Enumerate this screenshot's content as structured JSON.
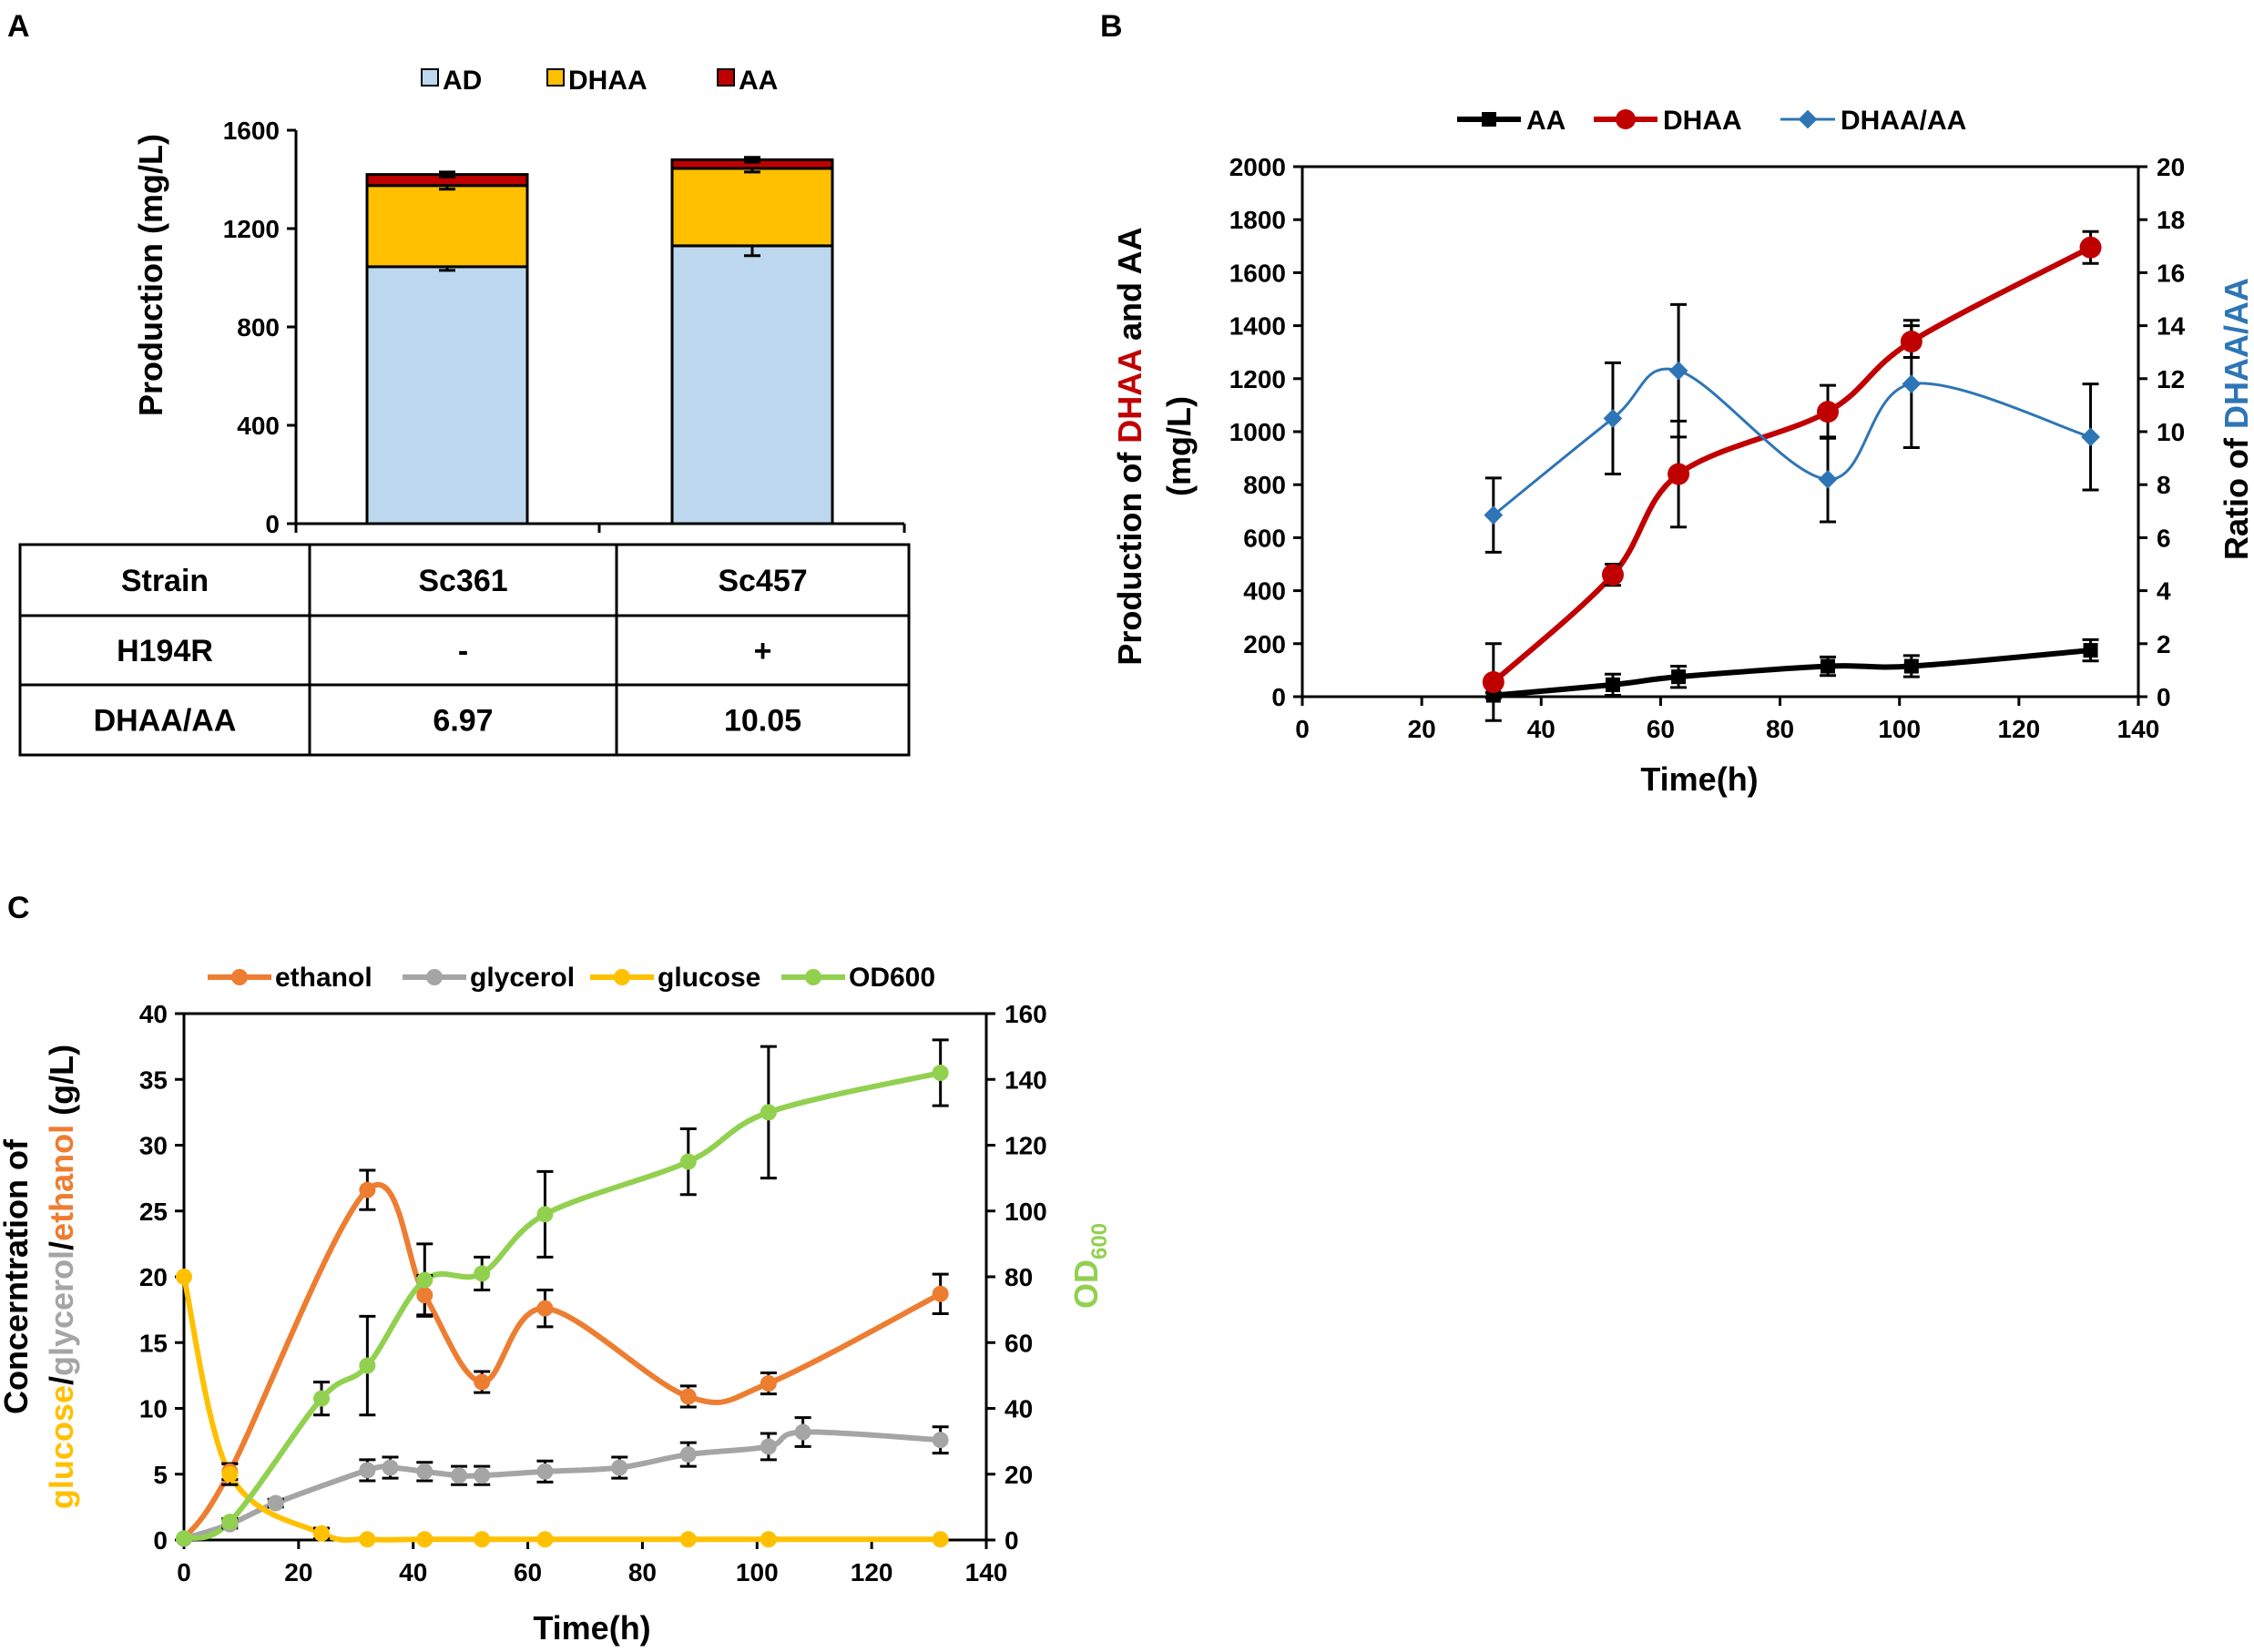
{
  "figure": {
    "panels": [
      "A",
      "B",
      "C"
    ]
  },
  "chart_data": [
    {
      "panel": "A",
      "type": "bar",
      "stacked": true,
      "categories": [
        "Sc361",
        "Sc457"
      ],
      "series": [
        {
          "name": "AD",
          "color": "#bdd7ee",
          "values": [
            1045,
            1130
          ],
          "errors": [
            15,
            40
          ]
        },
        {
          "name": "DHAA",
          "color": "#ffc000",
          "values": [
            330,
            315
          ],
          "errors": [
            15,
            15
          ]
        },
        {
          "name": "AA",
          "color": "#c00000",
          "values": [
            45,
            35
          ],
          "errors": [
            10,
            10
          ]
        }
      ],
      "ylabel": "Production (mg/L)",
      "ylim": [
        0,
        1600
      ],
      "yticks": [
        0,
        400,
        800,
        1200,
        1600
      ],
      "legend": "top",
      "table": {
        "rows": [
          {
            "header": "Strain",
            "values": [
              "Sc361",
              "Sc457"
            ]
          },
          {
            "header": "H194R",
            "values": [
              "-",
              "+"
            ]
          },
          {
            "header": "DHAA/AA",
            "values": [
              "6.97",
              "10.05"
            ]
          }
        ]
      }
    },
    {
      "panel": "B",
      "type": "line",
      "xlabel": "Time(h)",
      "xlim": [
        0,
        140
      ],
      "xticks": [
        0,
        20,
        40,
        60,
        80,
        100,
        120,
        140
      ],
      "ylabel_left": {
        "parts": [
          {
            "text": "Production of ",
            "color": "#000000"
          },
          {
            "text": "DHAA",
            "color": "#c00000"
          },
          {
            "text": " and AA",
            "color": "#000000"
          }
        ],
        "line2": "(mg/L)"
      },
      "ylim_left": [
        0,
        2000
      ],
      "yticks_left": [
        0,
        200,
        400,
        600,
        800,
        1000,
        1200,
        1400,
        1600,
        1800,
        2000
      ],
      "ylabel_right": {
        "parts": [
          {
            "text": "Ratio of ",
            "color": "#000000"
          },
          {
            "text": "DHAA/AA",
            "color": "#2e75b6"
          }
        ]
      },
      "ylim_right": [
        0,
        20
      ],
      "yticks_right": [
        0,
        2,
        4,
        6,
        8,
        10,
        12,
        14,
        16,
        18,
        20
      ],
      "legend": "top",
      "series": [
        {
          "name": "AA",
          "axis": "left",
          "color": "#000000",
          "marker": "square",
          "x": [
            32,
            52,
            63,
            88,
            102,
            132
          ],
          "y": [
            5,
            45,
            75,
            115,
            115,
            175
          ],
          "errors": [
            10,
            40,
            40,
            35,
            40,
            40
          ]
        },
        {
          "name": "DHAA",
          "axis": "left",
          "color": "#c00000",
          "marker": "circle",
          "x": [
            32,
            52,
            63,
            88,
            102,
            132
          ],
          "y": [
            55,
            460,
            840,
            1075,
            1340,
            1695
          ],
          "errors": [
            145,
            40,
            200,
            100,
            60,
            60
          ]
        },
        {
          "name": "DHAA/AA",
          "axis": "right",
          "color": "#2e75b6",
          "marker": "diamond",
          "x": [
            32,
            52,
            63,
            88,
            102,
            132
          ],
          "y": [
            6.85,
            10.5,
            12.3,
            8.2,
            11.8,
            9.8
          ],
          "errors": [
            1.4,
            2.1,
            2.5,
            1.6,
            2.4,
            2.0
          ]
        }
      ]
    },
    {
      "panel": "C",
      "type": "line",
      "xlabel": "Time(h)",
      "xlim": [
        0,
        140
      ],
      "xticks": [
        0,
        20,
        40,
        60,
        80,
        100,
        120,
        140
      ],
      "ylabel_left": {
        "line1": "Concerntration of",
        "parts": [
          {
            "text": "glucose",
            "color": "#ffc000"
          },
          {
            "text": "/",
            "color": "#000000"
          },
          {
            "text": "glycerol",
            "color": "#a5a5a5"
          },
          {
            "text": "/",
            "color": "#000000"
          },
          {
            "text": "ethanol",
            "color": "#ed7d31"
          },
          {
            "text": " (g/L)",
            "color": "#000000"
          }
        ]
      },
      "ylim_left": [
        0,
        40
      ],
      "yticks_left": [
        0,
        5,
        10,
        15,
        20,
        25,
        30,
        35,
        40
      ],
      "ylabel_right": {
        "main": "OD",
        "sub": "600",
        "color": "#92d050"
      },
      "ylim_right": [
        0,
        160
      ],
      "yticks_right": [
        0,
        20,
        40,
        60,
        80,
        100,
        120,
        140,
        160
      ],
      "legend": "top",
      "series": [
        {
          "name": "ethanol",
          "axis": "left",
          "color": "#ed7d31",
          "marker": "circle",
          "x": [
            0,
            8,
            32,
            42,
            52,
            63,
            88,
            102,
            132
          ],
          "y": [
            0.1,
            5.2,
            26.6,
            18.6,
            12.0,
            17.6,
            10.9,
            11.9,
            18.7
          ],
          "errors": [
            0,
            0.6,
            1.5,
            1.5,
            0.8,
            1.4,
            0.8,
            0.8,
            1.5
          ]
        },
        {
          "name": "glycerol",
          "axis": "left",
          "color": "#a5a5a5",
          "marker": "circle",
          "x": [
            0,
            8,
            16,
            32,
            36,
            42,
            48,
            52,
            63,
            76,
            88,
            102,
            108,
            132
          ],
          "y": [
            0.1,
            1.2,
            2.8,
            5.3,
            5.5,
            5.2,
            4.9,
            4.9,
            5.2,
            5.5,
            6.5,
            7.1,
            8.2,
            7.6
          ],
          "errors": [
            0,
            0.3,
            0.3,
            0.8,
            0.8,
            0.7,
            0.7,
            0.7,
            0.8,
            0.8,
            0.9,
            1.0,
            1.1,
            1.0
          ]
        },
        {
          "name": "glucose",
          "axis": "left",
          "color": "#ffc000",
          "marker": "circle",
          "x": [
            0,
            8,
            24,
            32,
            42,
            52,
            63,
            88,
            102,
            132
          ],
          "y": [
            20.0,
            5.0,
            0.5,
            0.05,
            0.05,
            0.05,
            0.05,
            0.05,
            0.05,
            0.05
          ],
          "errors": [
            0,
            0.8,
            0.4,
            0,
            0,
            0,
            0,
            0,
            0,
            0
          ]
        },
        {
          "name": "OD600",
          "axis": "right",
          "color": "#92d050",
          "marker": "circle",
          "x": [
            0,
            8,
            24,
            32,
            42,
            52,
            63,
            88,
            102,
            132
          ],
          "y": [
            0.5,
            5.5,
            43,
            53,
            79,
            81,
            99,
            115,
            130,
            142
          ],
          "errors": [
            0,
            1,
            5,
            15,
            11,
            5,
            13,
            10,
            20,
            10
          ]
        }
      ]
    }
  ]
}
